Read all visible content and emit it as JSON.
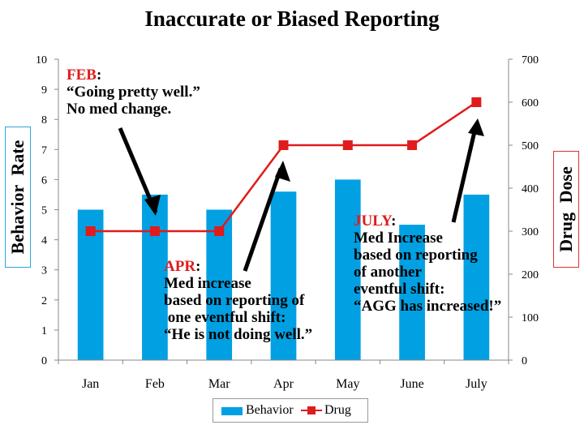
{
  "title": "Inaccurate or Biased Reporting",
  "chart_data": {
    "type": "bar",
    "categories": [
      "Jan",
      "Feb",
      "Mar",
      "Apr",
      "May",
      "June",
      "July"
    ],
    "series": [
      {
        "name": "Behavior",
        "type": "bar",
        "axis": "left",
        "color": "#00a0e3",
        "values": [
          5,
          5.5,
          5,
          5.6,
          6,
          4.5,
          5.5
        ]
      },
      {
        "name": "Drug",
        "type": "line",
        "axis": "right",
        "color": "#e01b1b",
        "marker": "square",
        "values": [
          300,
          300,
          300,
          500,
          500,
          500,
          600
        ]
      }
    ],
    "ylabel": "Behavior   Rate",
    "ylabel_right": "Drug  Dose",
    "ylim": [
      0,
      10
    ],
    "ylim_right": [
      0,
      700
    ],
    "yticks": [
      "0",
      "1",
      "2",
      "3",
      "4",
      "5",
      "6",
      "7",
      "8",
      "9",
      "10"
    ],
    "yticks_right": [
      "0",
      "100",
      "200",
      "300",
      "400",
      "500",
      "600",
      "700"
    ],
    "grid": false,
    "legend": "bottom"
  },
  "annotations": {
    "feb": {
      "month": "FEB",
      "lines": [
        "“Going  pretty well.”",
        "No med change."
      ]
    },
    "apr": {
      "month": "APR",
      "lines": [
        "Med increase",
        "based on reporting of",
        " one eventful shift:",
        "“He is not doing well.”"
      ]
    },
    "july": {
      "month": "JULY",
      "lines": [
        "Med Increase",
        "based on reporting",
        "of another",
        "eventful shift:",
        "“AGG has increased!”"
      ]
    }
  }
}
